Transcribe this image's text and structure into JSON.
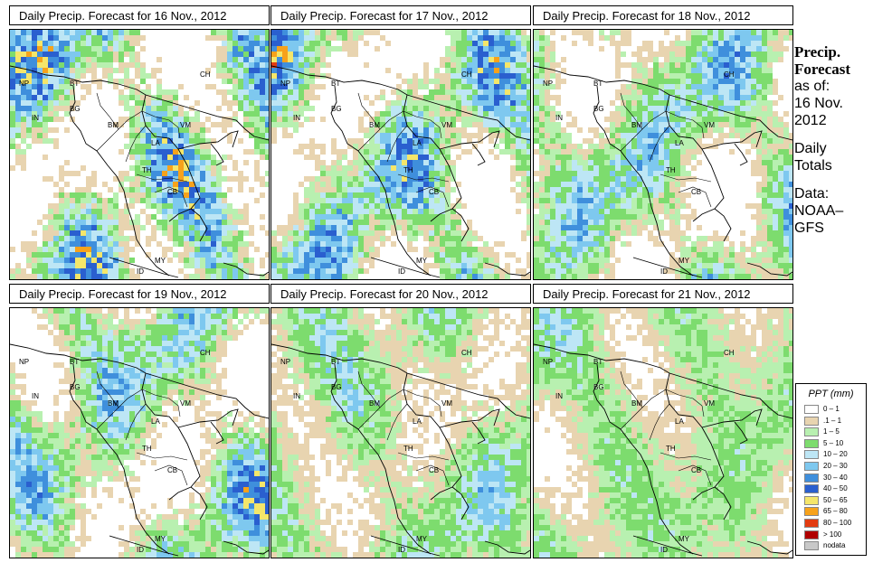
{
  "panels": [
    {
      "title": "Daily Precip. Forecast for  16 Nov., 2012",
      "intensity": 1.0
    },
    {
      "title": "Daily Precip. Forecast for  17 Nov., 2012",
      "intensity": 0.85
    },
    {
      "title": "Daily Precip. Forecast for  18 Nov., 2012",
      "intensity": 0.7
    },
    {
      "title": "Daily Precip. Forecast for  19 Nov., 2012",
      "intensity": 0.75
    },
    {
      "title": "Daily Precip. Forecast for  20 Nov., 2012",
      "intensity": 0.55
    },
    {
      "title": "Daily Precip. Forecast for  21 Nov., 2012",
      "intensity": 0.45
    }
  ],
  "country_labels": [
    "CH",
    "NP",
    "BT",
    "IN",
    "BG",
    "BM",
    "VM",
    "LA",
    "TH",
    "CB",
    "MY",
    "ID"
  ],
  "side": {
    "title_line1": "Precip.",
    "title_line2": "Forecast",
    "asof_line1": "as of:",
    "asof_line2": "16 Nov.",
    "asof_line3": "2012",
    "daily_line1": "Daily",
    "daily_line2": "Totals",
    "data_line1": "Data:",
    "data_line2": "NOAA–",
    "data_line3": "GFS"
  },
  "legend": {
    "title": "PPT (mm)",
    "items": [
      {
        "label": "0 – 1",
        "color": "#ffffff"
      },
      {
        "label": ".1 – 1",
        "color": "#e8d4b0"
      },
      {
        "label": "1 – 5",
        "color": "#b8f0b0"
      },
      {
        "label": "5 – 10",
        "color": "#7ddc6e"
      },
      {
        "label": "10 – 20",
        "color": "#bde6f5"
      },
      {
        "label": "20 – 30",
        "color": "#7ec8ef"
      },
      {
        "label": "30 – 40",
        "color": "#3f8fdc"
      },
      {
        "label": "40 – 50",
        "color": "#2a5fcf"
      },
      {
        "label": "50 – 65",
        "color": "#f5e66a"
      },
      {
        "label": "65 – 80",
        "color": "#f7a21b"
      },
      {
        "label": "80 – 100",
        "color": "#e33b10"
      },
      {
        "label": "> 100",
        "color": "#b00000"
      },
      {
        "label": "nodata",
        "color": "#c8c8c8"
      }
    ]
  }
}
